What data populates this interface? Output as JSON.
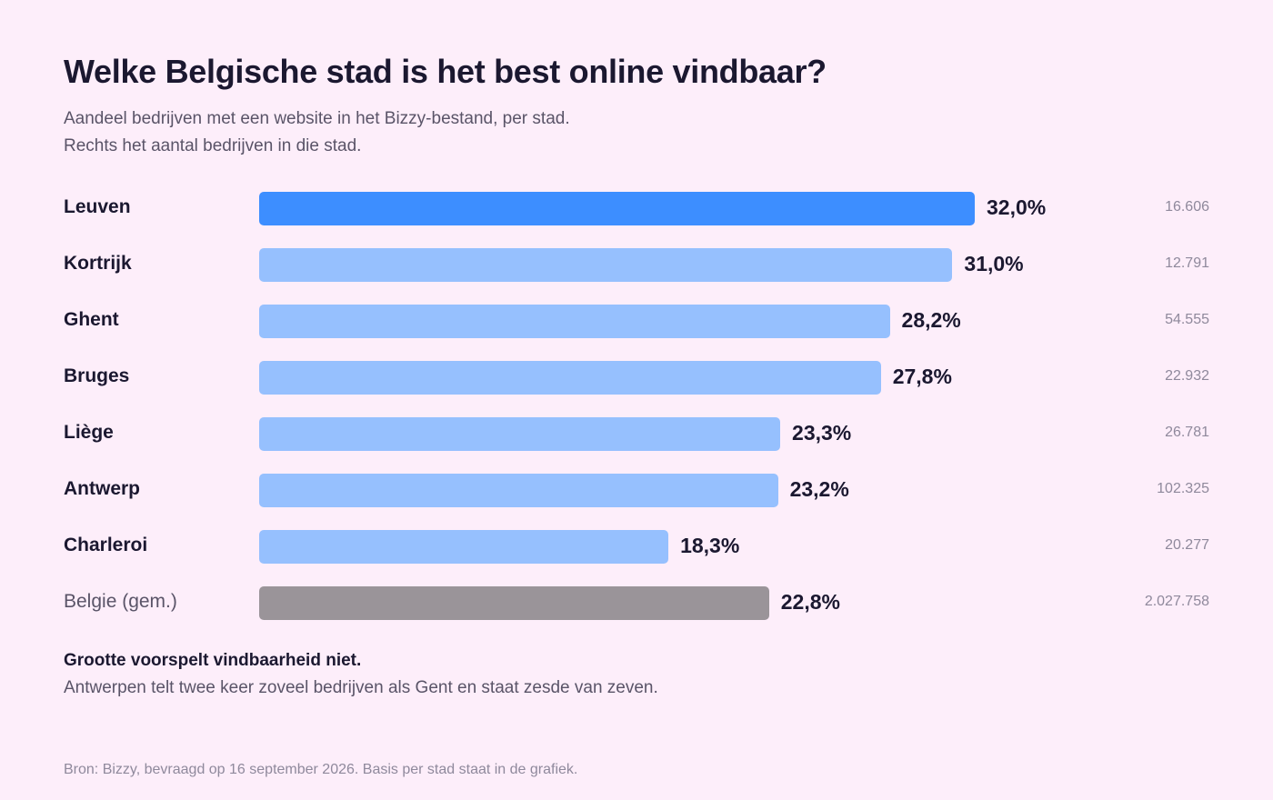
{
  "header": {
    "title": "Welke Belgische stad is het best online vindbaar?",
    "subtitle_line1": "Aandeel bedrijven met een website in het Bizzy-bestand, per stad.",
    "subtitle_line2": "Rechts het aantal bedrijven in die stad."
  },
  "chart_data": {
    "type": "bar",
    "orientation": "horizontal",
    "title": "Welke Belgische stad is het best online vindbaar?",
    "xlim": [
      0,
      40
    ],
    "grid": false,
    "legend": "none",
    "categories": [
      "Leuven",
      "Kortrijk",
      "Ghent",
      "Bruges",
      "Liège",
      "Antwerp",
      "Charleroi",
      "Belgie (gem.)"
    ],
    "values": [
      32.0,
      31.0,
      28.2,
      27.8,
      23.3,
      23.2,
      18.3,
      22.8
    ],
    "value_labels": [
      "32,0%",
      "31,0%",
      "28,2%",
      "27,8%",
      "23,3%",
      "23,2%",
      "18,3%",
      "22,8%"
    ],
    "counts": [
      "16.606",
      "12.791",
      "54.555",
      "22.932",
      "26.781",
      "102.325",
      "20.277",
      "2.027.758"
    ],
    "highlight_index": 0,
    "average_index": 7,
    "colors": {
      "highlight": "#3d8eff",
      "default": "#96c0fe",
      "average": "#9a9499"
    }
  },
  "note": {
    "title": "Grootte voorspelt vindbaarheid niet.",
    "text": "Antwerpen telt twee keer zoveel bedrijven als Gent en staat zesde van zeven."
  },
  "footer": {
    "source": "Bron: Bizzy, bevraagd op 16 september 2026. Basis per stad staat in de grafiek."
  }
}
